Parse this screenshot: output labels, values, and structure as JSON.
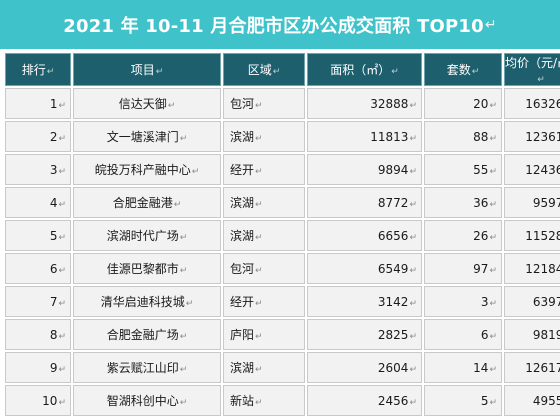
{
  "title": "2021 年 10-11 月合肥市区办公成交面积 TOP10",
  "paragraph_mark": "↵",
  "colors": {
    "title_bg": "#3fc2c9",
    "header_bg": "#1e5f6e",
    "cell_bg": "#f2f2f2"
  },
  "headers": [
    "排行",
    "项目",
    "区域",
    "面积（㎡）",
    "套数",
    "均价（元/㎡）"
  ],
  "rows": [
    {
      "rank": "1",
      "project": "信达天御",
      "area_region": "包河",
      "size": "32888",
      "units": "20",
      "price": "16326"
    },
    {
      "rank": "2",
      "project": "文一塘溪津门",
      "area_region": "滨湖",
      "size": "11813",
      "units": "88",
      "price": "12361"
    },
    {
      "rank": "3",
      "project": "皖投万科产融中心",
      "area_region": "经开",
      "size": "9894",
      "units": "55",
      "price": "12436"
    },
    {
      "rank": "4",
      "project": "合肥金融港",
      "area_region": "滨湖",
      "size": "8772",
      "units": "36",
      "price": "9597"
    },
    {
      "rank": "5",
      "project": "滨湖时代广场",
      "area_region": "滨湖",
      "size": "6656",
      "units": "26",
      "price": "11528"
    },
    {
      "rank": "6",
      "project": "佳源巴黎都市",
      "area_region": "包河",
      "size": "6549",
      "units": "97",
      "price": "12184"
    },
    {
      "rank": "7",
      "project": "清华启迪科技城",
      "area_region": "经开",
      "size": "3142",
      "units": "3",
      "price": "6397"
    },
    {
      "rank": "8",
      "project": "合肥金融广场",
      "area_region": "庐阳",
      "size": "2825",
      "units": "6",
      "price": "9819"
    },
    {
      "rank": "9",
      "project": "紫云赋江山印",
      "area_region": "滨湖",
      "size": "2604",
      "units": "14",
      "price": "12617"
    },
    {
      "rank": "10",
      "project": "智湖科创中心",
      "area_region": "新站",
      "size": "2456",
      "units": "5",
      "price": "4955"
    }
  ]
}
